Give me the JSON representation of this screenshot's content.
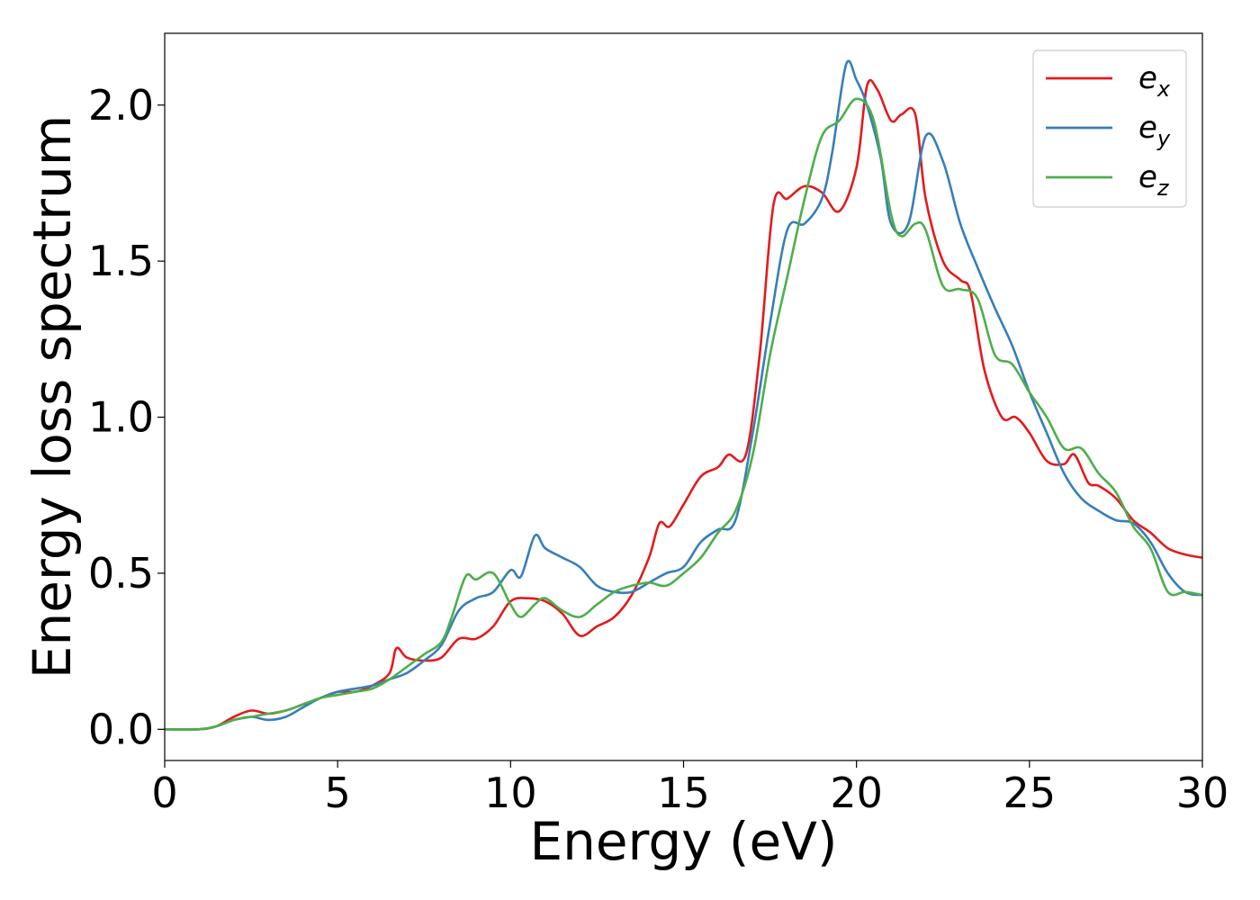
{
  "chart_data": {
    "type": "line",
    "title": "",
    "xlabel": "Energy (eV)",
    "ylabel": "Energy loss spectrum",
    "xlim": [
      0,
      30
    ],
    "ylim": [
      -0.1,
      2.23
    ],
    "xticks": [
      0,
      5,
      10,
      15,
      20,
      25,
      30
    ],
    "xtick_labels": [
      "0",
      "5",
      "10",
      "15",
      "20",
      "25",
      "30"
    ],
    "yticks": [
      0,
      0.5,
      1.0,
      1.5,
      2.0
    ],
    "ytick_labels": [
      "0.0",
      "0.5",
      "1.0",
      "1.5",
      "2.0"
    ],
    "grid": false,
    "legend_position": "top-right",
    "series": [
      {
        "name": "e_x",
        "label_base": "e",
        "label_sub": "x",
        "color": "#e41a1c",
        "x": [
          0,
          1,
          1.5,
          2,
          2.5,
          3,
          3.5,
          4,
          4.5,
          5,
          5.5,
          6,
          6.5,
          6.7,
          7,
          7.5,
          8,
          8.5,
          9,
          9.5,
          10,
          10.5,
          11,
          11.5,
          12,
          12.5,
          13,
          13.5,
          14,
          14.3,
          14.6,
          15,
          15.5,
          16,
          16.3,
          16.8,
          17.2,
          17.6,
          18,
          18.5,
          19,
          19.5,
          20,
          20.3,
          20.6,
          21,
          21.3,
          21.7,
          22,
          22.5,
          23,
          23.3,
          23.7,
          24.2,
          24.6,
          25,
          25.5,
          26,
          26.3,
          26.7,
          27,
          27.5,
          28,
          28.5,
          29,
          29.5,
          30
        ],
        "y": [
          0,
          0,
          0.01,
          0.04,
          0.06,
          0.05,
          0.06,
          0.08,
          0.1,
          0.12,
          0.12,
          0.14,
          0.18,
          0.26,
          0.23,
          0.22,
          0.23,
          0.29,
          0.29,
          0.33,
          0.41,
          0.42,
          0.41,
          0.37,
          0.3,
          0.33,
          0.36,
          0.43,
          0.55,
          0.66,
          0.65,
          0.72,
          0.81,
          0.84,
          0.88,
          0.88,
          1.2,
          1.68,
          1.7,
          1.74,
          1.72,
          1.66,
          1.8,
          2.06,
          2.05,
          1.95,
          1.97,
          1.97,
          1.7,
          1.5,
          1.44,
          1.4,
          1.15,
          1.0,
          1.0,
          0.95,
          0.86,
          0.85,
          0.88,
          0.79,
          0.78,
          0.74,
          0.67,
          0.63,
          0.58,
          0.56,
          0.55
        ]
      },
      {
        "name": "e_y",
        "label_base": "e",
        "label_sub": "y",
        "color": "#377eb8",
        "x": [
          0,
          1,
          1.5,
          2,
          2.5,
          3,
          3.5,
          4,
          4.5,
          5,
          5.5,
          6,
          6.5,
          7,
          7.5,
          8,
          8.5,
          9,
          9.5,
          10,
          10.3,
          10.7,
          11,
          11.5,
          12,
          12.5,
          13,
          13.5,
          14,
          14.5,
          15,
          15.5,
          16,
          16.5,
          17,
          17.5,
          18,
          18.5,
          19,
          19.3,
          19.7,
          20,
          20.3,
          20.7,
          21,
          21.5,
          22,
          22.5,
          23,
          23.5,
          24,
          24.5,
          25,
          25.5,
          26,
          26.5,
          27,
          27.5,
          28,
          28.5,
          29,
          29.5,
          30
        ],
        "y": [
          0,
          0,
          0.01,
          0.03,
          0.04,
          0.03,
          0.04,
          0.07,
          0.1,
          0.12,
          0.13,
          0.14,
          0.16,
          0.18,
          0.22,
          0.27,
          0.38,
          0.42,
          0.44,
          0.51,
          0.49,
          0.62,
          0.58,
          0.55,
          0.52,
          0.46,
          0.44,
          0.44,
          0.47,
          0.5,
          0.52,
          0.6,
          0.64,
          0.67,
          0.95,
          1.3,
          1.6,
          1.62,
          1.7,
          1.85,
          2.13,
          2.08,
          2.0,
          1.83,
          1.62,
          1.62,
          1.9,
          1.82,
          1.62,
          1.48,
          1.35,
          1.23,
          1.08,
          0.95,
          0.82,
          0.74,
          0.7,
          0.67,
          0.66,
          0.6,
          0.5,
          0.44,
          0.43
        ]
      },
      {
        "name": "e_z",
        "label_base": "e",
        "label_sub": "z",
        "color": "#4daf4a",
        "x": [
          0,
          1,
          1.5,
          2,
          2.5,
          3,
          3.5,
          4,
          4.5,
          5,
          5.5,
          6,
          6.5,
          7,
          7.5,
          8,
          8.3,
          8.7,
          9,
          9.5,
          10,
          10.3,
          10.7,
          11,
          11.5,
          12,
          12.5,
          13,
          13.5,
          14,
          14.5,
          15,
          15.5,
          16,
          16.5,
          17,
          17.5,
          18,
          18.5,
          19,
          19.5,
          20,
          20.5,
          21,
          21.3,
          21.7,
          22,
          22.5,
          23,
          23.5,
          24,
          24.5,
          25,
          25.5,
          26,
          26.5,
          27,
          27.5,
          28,
          28.5,
          29,
          29.5,
          30
        ],
        "y": [
          0,
          0,
          0.01,
          0.03,
          0.04,
          0.05,
          0.06,
          0.08,
          0.1,
          0.11,
          0.12,
          0.13,
          0.16,
          0.2,
          0.24,
          0.28,
          0.36,
          0.49,
          0.48,
          0.5,
          0.4,
          0.36,
          0.4,
          0.42,
          0.38,
          0.36,
          0.4,
          0.44,
          0.46,
          0.47,
          0.46,
          0.5,
          0.55,
          0.63,
          0.7,
          0.88,
          1.2,
          1.45,
          1.7,
          1.9,
          1.95,
          2.02,
          1.95,
          1.65,
          1.58,
          1.62,
          1.6,
          1.42,
          1.41,
          1.38,
          1.2,
          1.17,
          1.08,
          1.0,
          0.9,
          0.9,
          0.82,
          0.76,
          0.65,
          0.58,
          0.44,
          0.44,
          0.43
        ]
      }
    ]
  }
}
